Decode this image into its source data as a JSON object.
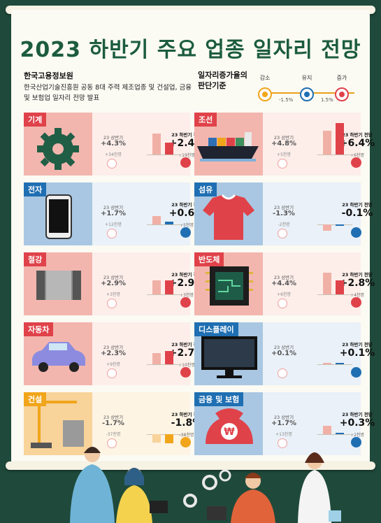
{
  "title": "2023 하반기 주요 업종 일자리 전망",
  "source": "한국고용정보원",
  "description": "한국산업기술진흥원 공동 8대 주력 제조업종 및 건설업, 금융 및 보험업 일자리 전망 발표",
  "criteria": "일자리증가율의 판단기준",
  "legend": {
    "decrease": "감소",
    "maintain": "유지",
    "increase": "증가",
    "low": "-1.5%",
    "high": "1.5%"
  },
  "colors": {
    "increase": "#e0424a",
    "maintain": "#1f6fb2",
    "decrease": "#f1a51b"
  },
  "h1_label": "23 상반기",
  "h2_label": "23 하반기 전망",
  "cards": [
    {
      "name": "기계",
      "h1": "+4.3%",
      "h1_sub": "+34천명",
      "h2": "+2.4%",
      "h2_sub": "+19천명",
      "h1_num": 4.3,
      "h2_num": 2.4,
      "trend": "increase",
      "icon": "gear-icon"
    },
    {
      "name": "조선",
      "h1": "+4.8%",
      "h1_sub": "+5천명",
      "h2": "+6.4%",
      "h2_sub": "+6천명",
      "h1_num": 4.8,
      "h2_num": 6.4,
      "trend": "increase",
      "icon": "ship-icon"
    },
    {
      "name": "전자",
      "h1": "+1.7%",
      "h1_sub": "+12천명",
      "h2": "+0.6%",
      "h2_sub": "+5천명",
      "h1_num": 1.7,
      "h2_num": 0.6,
      "trend": "maintain",
      "icon": "phone-icon"
    },
    {
      "name": "섬유",
      "h1": "-1.3%",
      "h1_sub": "-2천명",
      "h2": "-0.1%",
      "h2_sub": "",
      "h1_num": -1.3,
      "h2_num": -0.1,
      "trend": "maintain",
      "icon": "shirt-icon"
    },
    {
      "name": "철강",
      "h1": "+2.9%",
      "h1_sub": "+3천명",
      "h2": "+2.9%",
      "h2_sub": "+3천명",
      "h1_num": 2.9,
      "h2_num": 2.9,
      "trend": "increase",
      "icon": "steel-icon"
    },
    {
      "name": "반도체",
      "h1": "+4.4%",
      "h1_sub": "+6천명",
      "h2": "+2.8%",
      "h2_sub": "+4천명",
      "h1_num": 4.4,
      "h2_num": 2.8,
      "trend": "increase",
      "icon": "chip-icon"
    },
    {
      "name": "자동차",
      "h1": "+2.3%",
      "h1_sub": "+9천명",
      "h2": "+2.7%",
      "h2_sub": "+10천명",
      "h1_num": 2.3,
      "h2_num": 2.7,
      "trend": "increase",
      "icon": "car-icon"
    },
    {
      "name": "디스플레이",
      "h1": "+0.1%",
      "h1_sub": "",
      "h2": "+0.1%",
      "h2_sub": "",
      "h1_num": 0.1,
      "h2_num": 0.1,
      "trend": "maintain",
      "icon": "monitor-icon"
    },
    {
      "name": "건설",
      "h1": "-1.7%",
      "h1_sub": "-37천명",
      "h2": "-1.8%",
      "h2_sub": "-38천명",
      "h1_num": -1.7,
      "h2_num": -1.8,
      "trend": "decrease",
      "icon": "crane-icon"
    },
    {
      "name": "금융 및 보험",
      "h1": "+1.7%",
      "h1_sub": "+13천명",
      "h2": "+0.3%",
      "h2_sub": "+2천명",
      "h1_num": 1.7,
      "h2_num": 0.3,
      "trend": "maintain",
      "icon": "moneybag-icon"
    }
  ]
}
